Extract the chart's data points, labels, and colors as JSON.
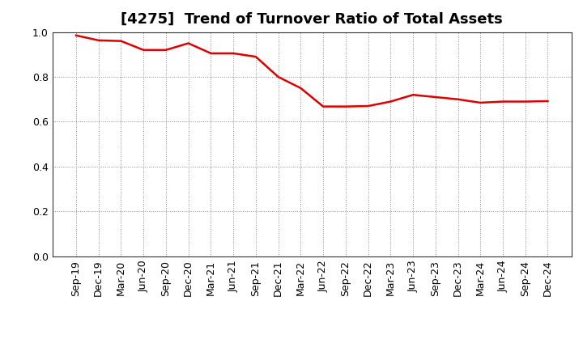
{
  "title": "[4275]  Trend of Turnover Ratio of Total Assets",
  "x_labels": [
    "Sep-19",
    "Dec-19",
    "Mar-20",
    "Jun-20",
    "Sep-20",
    "Dec-20",
    "Mar-21",
    "Jun-21",
    "Sep-21",
    "Dec-21",
    "Mar-22",
    "Jun-22",
    "Sep-22",
    "Dec-22",
    "Mar-23",
    "Jun-23",
    "Sep-23",
    "Dec-23",
    "Mar-24",
    "Jun-24",
    "Sep-24",
    "Dec-24"
  ],
  "y_values": [
    0.985,
    0.963,
    0.96,
    0.92,
    0.92,
    0.95,
    0.905,
    0.905,
    0.89,
    0.8,
    0.75,
    0.668,
    0.668,
    0.67,
    0.69,
    0.72,
    0.71,
    0.7,
    0.685,
    0.69,
    0.69,
    0.692
  ],
  "line_color": "#dd0000",
  "line_width": 1.8,
  "ylim": [
    0.0,
    1.0
  ],
  "yticks": [
    0.0,
    0.2,
    0.4,
    0.6,
    0.8,
    1.0
  ],
  "background_color": "#ffffff",
  "grid_color": "#aaaaaa",
  "title_fontsize": 13,
  "tick_fontsize": 9
}
